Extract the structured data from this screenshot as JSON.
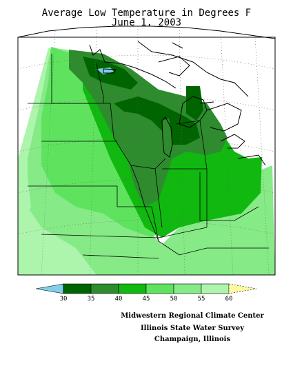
{
  "title_line1": "Average Low Temperature in Degrees F",
  "title_line2": "June 1, 2003",
  "credits": {
    "line1": "Midwestern Regional Climate Center",
    "line2": "Illinois State Water Survey",
    "line3": "Champaign, Illinois"
  },
  "legend": {
    "ticks": [
      "30",
      "35",
      "40",
      "45",
      "50",
      "55",
      "60"
    ],
    "colors": {
      "below_30": "#7fd0e8",
      "30_35": "#006400",
      "35_40": "#2e8b2e",
      "40_45": "#10b810",
      "45_50": "#5fe35f",
      "50_55": "#86ea86",
      "55_60": "#adf5ad",
      "above_60": "#fffaa0"
    }
  }
}
